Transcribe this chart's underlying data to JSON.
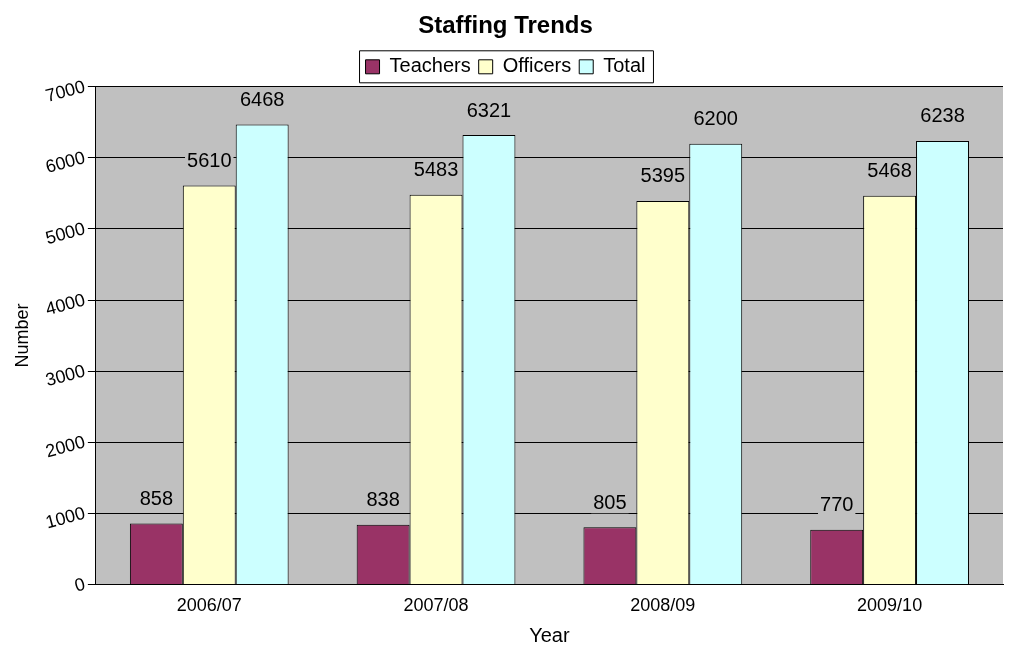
{
  "chart_data": {
    "type": "bar",
    "title": "Staffing Trends",
    "xlabel": "Year",
    "ylabel": "Number",
    "categories": [
      "2006/07",
      "2007/08",
      "2008/09",
      "2009/10"
    ],
    "series": [
      {
        "name": "Teachers",
        "color": "#993366",
        "values": [
          858,
          838,
          805,
          770
        ]
      },
      {
        "name": "Officers",
        "color": "#ffffcc",
        "values": [
          5610,
          5483,
          5395,
          5468
        ]
      },
      {
        "name": "Total",
        "color": "#ccffff",
        "values": [
          6468,
          6321,
          6200,
          6238
        ]
      }
    ],
    "ylim": [
      0,
      7000
    ],
    "yticks": [
      0,
      1000,
      2000,
      3000,
      4000,
      5000,
      6000,
      7000
    ],
    "grid": "y",
    "legend": "top",
    "data_labels": true
  }
}
